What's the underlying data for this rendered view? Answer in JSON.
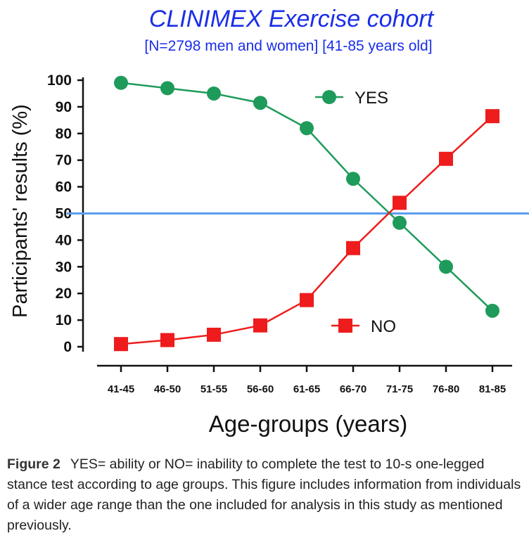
{
  "chart_data": {
    "type": "line",
    "title": "CLINIMEX Exercise cohort",
    "subtitle": "[N=2798 men and women] [41-85 years old]",
    "xlabel": "Age-groups (years)",
    "ylabel": "Participants' results (%)",
    "categories": [
      "41-45",
      "46-50",
      "51-55",
      "56-60",
      "61-65",
      "66-70",
      "71-75",
      "76-80",
      "81-85"
    ],
    "yticks": [
      "0",
      "10",
      "20",
      "30",
      "40",
      "50",
      "60",
      "70",
      "80",
      "90",
      "100"
    ],
    "ylim": [
      0,
      100
    ],
    "reference_line": {
      "y": 50,
      "color": "#5b9ded"
    },
    "legend_placement": "inside",
    "series": [
      {
        "name": "YES",
        "color": "#1e9b5a",
        "marker": "circle",
        "values": [
          99,
          97,
          95,
          91.5,
          82,
          63,
          46.5,
          30,
          13.5
        ]
      },
      {
        "name": "NO",
        "color": "#ee1c1c",
        "marker": "square",
        "values": [
          1,
          2.5,
          4.5,
          8,
          17.5,
          37,
          54,
          70.5,
          86.5
        ]
      }
    ]
  },
  "caption": {
    "label": "Figure 2",
    "text": "YES= ability or NO= inability to complete the test to 10-s one-legged stance test according to age groups. This figure includes information from individuals of a wider age range than the one included for analysis in this study as mentioned previously."
  }
}
